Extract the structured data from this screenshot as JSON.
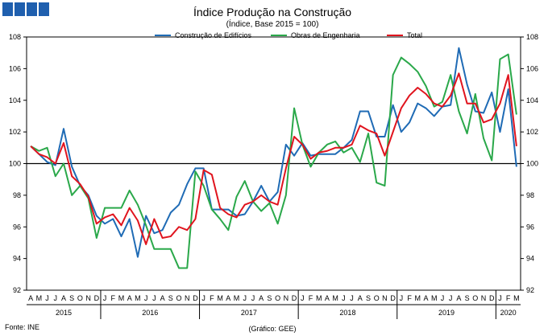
{
  "logo": {
    "color": "#1f5fae",
    "squares": 4
  },
  "chart_data": {
    "type": "line",
    "title": "Índice Produção na Construção",
    "subtitle": "(Índice, Base 2015 = 100)",
    "ylim": [
      92,
      108
    ],
    "yticks": [
      "92",
      "94",
      "96",
      "98",
      "100",
      "102",
      "104",
      "106",
      "108"
    ],
    "reference_line": 100,
    "month_labels": [
      "A",
      "M",
      "J",
      "J",
      "A",
      "S",
      "O",
      "N",
      "D",
      "J",
      "F",
      "M",
      "A",
      "M",
      "J",
      "J",
      "A",
      "S",
      "O",
      "N",
      "D",
      "J",
      "F",
      "M",
      "A",
      "M",
      "J",
      "J",
      "A",
      "S",
      "O",
      "N",
      "D",
      "J",
      "F",
      "M",
      "A",
      "M",
      "J",
      "J",
      "A",
      "S",
      "O",
      "N",
      "D",
      "J",
      "F",
      "M",
      "A",
      "M",
      "J",
      "J",
      "A",
      "S",
      "O",
      "N",
      "D",
      "J",
      "F",
      "M"
    ],
    "years": [
      {
        "label": "2015",
        "start": 0,
        "end": 9
      },
      {
        "label": "2016",
        "start": 9,
        "end": 21
      },
      {
        "label": "2017",
        "start": 21,
        "end": 33
      },
      {
        "label": "2018",
        "start": 33,
        "end": 45
      },
      {
        "label": "2019",
        "start": 45,
        "end": 57
      },
      {
        "label": "2020",
        "start": 57,
        "end": 60
      }
    ],
    "legend_position": "top-center",
    "series": [
      {
        "name": "Construção de Edifícios",
        "color": "#1f6bb5",
        "values": [
          101.1,
          100.6,
          100.1,
          99.9,
          102.2,
          99.8,
          98.6,
          98.0,
          96.7,
          96.2,
          96.5,
          95.4,
          96.5,
          94.1,
          96.7,
          95.6,
          95.8,
          96.9,
          97.4,
          98.7,
          99.7,
          99.7,
          97.1,
          97.1,
          97.1,
          96.7,
          96.8,
          97.6,
          98.6,
          97.6,
          98.2,
          101.2,
          100.5,
          101.3,
          100.5,
          100.6,
          100.6,
          100.6,
          101.0,
          101.5,
          103.3,
          103.3,
          101.7,
          101.7,
          103.7,
          102.0,
          102.6,
          103.8,
          103.5,
          103.0,
          103.6,
          103.7,
          107.3,
          105.0,
          103.3,
          103.2,
          104.5,
          102.0,
          104.7,
          99.8
        ]
      },
      {
        "name": "Obras de Engenharia",
        "color": "#2aa84a",
        "values": [
          101.1,
          100.8,
          101.0,
          99.2,
          100.0,
          98.0,
          98.6,
          97.8,
          95.3,
          97.2,
          97.2,
          97.2,
          98.3,
          97.4,
          96.1,
          94.6,
          94.6,
          94.6,
          93.4,
          93.4,
          99.5,
          98.6,
          97.1,
          96.5,
          95.8,
          97.9,
          98.9,
          97.6,
          97.0,
          97.5,
          96.2,
          98.0,
          103.5,
          101.2,
          99.8,
          100.7,
          101.2,
          101.4,
          100.7,
          101.0,
          100.1,
          101.9,
          98.8,
          98.6,
          105.6,
          106.7,
          106.3,
          105.8,
          104.9,
          103.6,
          103.9,
          105.6,
          103.3,
          101.9,
          104.4,
          101.6,
          100.2,
          106.6,
          106.9,
          103.1
        ]
      },
      {
        "name": "Total",
        "color": "#e0141e",
        "values": [
          101.1,
          100.6,
          100.4,
          100.0,
          101.3,
          99.2,
          98.7,
          97.9,
          96.2,
          96.6,
          96.8,
          96.1,
          97.2,
          96.4,
          94.9,
          96.5,
          95.3,
          95.4,
          96.0,
          95.8,
          96.5,
          99.6,
          99.3,
          97.2,
          96.8,
          96.6,
          97.4,
          97.6,
          98.0,
          97.6,
          97.4,
          99.7,
          101.7,
          101.2,
          100.3,
          100.7,
          100.8,
          101.0,
          101.0,
          101.2,
          102.4,
          102.1,
          101.9,
          100.5,
          102.0,
          103.5,
          104.3,
          104.8,
          104.4,
          103.8,
          103.6,
          104.3,
          105.7,
          103.8,
          103.8,
          102.6,
          102.8,
          103.8,
          105.6,
          101.1
        ]
      }
    ],
    "source": "Fonte: INE",
    "credit": "(Gráfico: GEE)"
  }
}
